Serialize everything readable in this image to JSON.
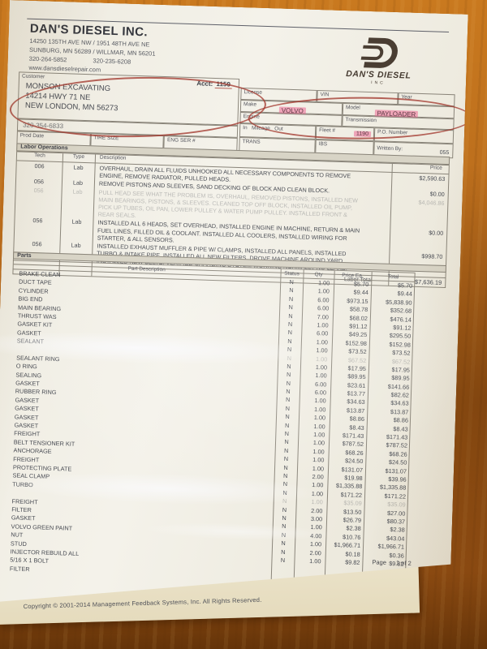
{
  "company": {
    "name": "DAN'S DIESEL INC.",
    "address1": "14250 135TH AVE NW / 1951 48TH AVE NE",
    "address2": "SUNBURG, MN 56289 / WILLMAR, MN 56201",
    "phone1": "320-264-5852",
    "phone2": "320-235-6208",
    "website": "www.dansdieselrepair.com"
  },
  "logo": {
    "name": "DAN'S DIESEL",
    "sub": "INC"
  },
  "customer": {
    "label": "Customer",
    "acct_label": "Acct:",
    "acct_value": "1159",
    "name": "MONSON EXCAVATING",
    "address1": "14214 HWY 71 NE",
    "address2": "NEW LONDON, MN 56273",
    "phone": "320-354-6833"
  },
  "vehicle": {
    "license_label": "License",
    "vin_label": "VIN",
    "year_label": "Year",
    "make_label": "Make",
    "make_value": "VOLVO",
    "model_label": "Model",
    "model_value": "PAYLOADER",
    "engine_label": "Engine",
    "transmission_label": "Transmission",
    "in_label": "In",
    "mileage_label": "Mileage",
    "out_label": "Out",
    "fleet_label": "Fleet #",
    "fleet_value": "1190",
    "po_label": "P.O. Number",
    "prod_date_label": "Prod Date",
    "tire_size_label": "TIRE SIZE",
    "eng_ser_label": "ENG SER #",
    "trans_label": "TRANS",
    "ibs_label": "IBS",
    "written_by_label": "Written By:",
    "written_by_value": "055"
  },
  "labor": {
    "section_label": "Labor Operations",
    "headers": {
      "tech": "Tech",
      "type": "Type",
      "desc": "Description",
      "price": "Price"
    },
    "rows": [
      {
        "tech": "006",
        "type": "Lab",
        "desc": "OVERHAUL, DRAIN ALL FLUIDS UNHOOKED ALL NECESSARY COMPONENTS TO REMOVE ENGINE, REMOVE RADIATOR, PULLED HEADS.",
        "price": "$2,590.63"
      },
      {
        "tech": "056",
        "type": "Lab",
        "desc": "REMOVE PISTONS AND SLEEVES, SAND DECKING OF BLOCK AND CLEAN BLOCK.",
        "price": "$0.00"
      },
      {
        "tech": "056",
        "type": "Lab",
        "desc": "PULL HEAD SEE WHAT THE PROBLEM IS, OVERHAUL, REMOVED PISTONS, INSTALLED NEW MAIN BEARINGS, PISTONS, & SLEEVES. CLEANED TOP OFF BLOCK, INSTALLED OIL PUMP, PICK UP TUBES, OIL PAN, LOWER PULLEY & WATER PUMP PULLEY. INSTALLED FRONT & REAR SEALS.",
        "price": "$4,046.86",
        "faint": true
      },
      {
        "tech": "056",
        "type": "Lab",
        "desc": "INSTALLED ALL 6 HEADS, SET OVERHEAD, INSTALLED ENGINE IN MACHINE, RETURN & MAIN FUEL LINES, FILLED OIL & COOLANT. INSTALLED ALL COOLERS, INSTALLED WIRING FOR STARTER, & ALL SENSORS.",
        "price": "$0.00"
      },
      {
        "tech": "056",
        "type": "Lab",
        "desc": "INSTALLED EXHAUST MUFFLER & PIPE W/ CLAMPS, INSTALLED ALL PANELS, INSTALLED TURBO & INTAKE PIPE, INSTALLED ALL NEW FILTERS, DROVE MACHINE AROUND YARD, INSTALLED NEW BELTS, VERIFIED CHARGING SYSTEM WORKING NORMALLY NO LEAKS.",
        "price": "$998.70"
      }
    ],
    "total_label": "Labor Total",
    "total": "$7,636.19"
  },
  "parts": {
    "section_label": "Parts",
    "headers": {
      "desc": "Part Description",
      "status": "Status",
      "qty": "Qty",
      "price": "Price Ea.",
      "total": "Total"
    },
    "rows": [
      {
        "desc": "BRAKE CLEAN",
        "status": "N",
        "qty": "1.00",
        "price": "$5.70",
        "total": "$5.70"
      },
      {
        "desc": "DUCT TAPE",
        "status": "N",
        "qty": "1.00",
        "price": "$9.44",
        "total": "$9.44"
      },
      {
        "desc": "CYLINDER",
        "status": "N",
        "qty": "6.00",
        "price": "$973.15",
        "total": "$5,838.90"
      },
      {
        "desc": "BIG END",
        "status": "N",
        "qty": "6.00",
        "price": "$58.78",
        "total": "$352.68"
      },
      {
        "desc": "MAIN BEARING",
        "status": "N",
        "qty": "7.00",
        "price": "$68.02",
        "total": "$476.14"
      },
      {
        "desc": "THRUST WAS",
        "status": "N",
        "qty": "1.00",
        "price": "$91.12",
        "total": "$91.12"
      },
      {
        "desc": "GASKET KIT",
        "status": "N",
        "qty": "6.00",
        "price": "$49.25",
        "total": "$295.50"
      },
      {
        "desc": "GASKET",
        "status": "N",
        "qty": "1.00",
        "price": "$152.98",
        "total": "$152.98"
      },
      {
        "desc": "SEALANT",
        "status": "N",
        "qty": "1.00",
        "price": "$73.52",
        "total": "$73.52"
      },
      {
        "desc": "",
        "status": "N",
        "qty": "1.00",
        "price": "$67.52",
        "total": "$67.52",
        "faint": true
      },
      {
        "desc": "SEALANT RING",
        "status": "N",
        "qty": "1.00",
        "price": "$17.95",
        "total": "$17.95"
      },
      {
        "desc": "O RING",
        "status": "N",
        "qty": "1.00",
        "price": "$89.95",
        "total": "$89.95"
      },
      {
        "desc": "SEALING",
        "status": "N",
        "qty": "6.00",
        "price": "$23.61",
        "total": "$141.66"
      },
      {
        "desc": "GASKET",
        "status": "N",
        "qty": "6.00",
        "price": "$13.77",
        "total": "$82.62"
      },
      {
        "desc": "RUBBER RING",
        "status": "N",
        "qty": "1.00",
        "price": "$34.63",
        "total": "$34.63"
      },
      {
        "desc": "GASKET",
        "status": "N",
        "qty": "1.00",
        "price": "$13.87",
        "total": "$13.87"
      },
      {
        "desc": "GASKET",
        "status": "N",
        "qty": "1.00",
        "price": "$8.86",
        "total": "$8.86"
      },
      {
        "desc": "GASKET",
        "status": "N",
        "qty": "1.00",
        "price": "$8.43",
        "total": "$8.43"
      },
      {
        "desc": "GASKET",
        "status": "N",
        "qty": "1.00",
        "price": "$171.43",
        "total": "$171.43"
      },
      {
        "desc": "FREIGHT",
        "status": "N",
        "qty": "1.00",
        "price": "$787.52",
        "total": "$787.52"
      },
      {
        "desc": "BELT TENSIONER KIT",
        "status": "N",
        "qty": "1.00",
        "price": "$68.26",
        "total": "$68.26"
      },
      {
        "desc": "ANCHORAGE",
        "status": "N",
        "qty": "1.00",
        "price": "$24.50",
        "total": "$24.50"
      },
      {
        "desc": "FREIGHT",
        "status": "N",
        "qty": "1.00",
        "price": "$131.07",
        "total": "$131.07"
      },
      {
        "desc": "PROTECTING PLATE",
        "status": "N",
        "qty": "2.00",
        "price": "$19.98",
        "total": "$39.96"
      },
      {
        "desc": "SEAL CLAMP",
        "status": "N",
        "qty": "1.00",
        "price": "$1,335.88",
        "total": "$1,335.88"
      },
      {
        "desc": "TURBO",
        "status": "N",
        "qty": "1.00",
        "price": "$171.22",
        "total": "$171.22"
      },
      {
        "desc": "",
        "status": "N",
        "qty": "1.00",
        "price": "$35.09",
        "total": "$35.09",
        "faint": true
      },
      {
        "desc": "FREIGHT",
        "status": "N",
        "qty": "2.00",
        "price": "$13.50",
        "total": "$27.00"
      },
      {
        "desc": "FILTER",
        "status": "N",
        "qty": "3.00",
        "price": "$26.79",
        "total": "$80.37"
      },
      {
        "desc": "GASKET",
        "status": "N",
        "qty": "1.00",
        "price": "$2.38",
        "total": "$2.38"
      },
      {
        "desc": "VOLVO GREEN PAINT",
        "status": "N",
        "qty": "4.00",
        "price": "$10.76",
        "total": "$43.04"
      },
      {
        "desc": "NUT",
        "status": "N",
        "qty": "1.00",
        "price": "$1,966.71",
        "total": "$1,966.71"
      },
      {
        "desc": "STUD",
        "status": "N",
        "qty": "2.00",
        "price": "$0.18",
        "total": "$0.36"
      },
      {
        "desc": "INJECTOR REBUILD ALL",
        "status": "N",
        "qty": "1.00",
        "price": "$9.82",
        "total": "$9.82"
      },
      {
        "desc": "5/16 X 1 BOLT",
        "status": "",
        "qty": "",
        "price": "",
        "total": ""
      },
      {
        "desc": "FILTER",
        "status": "",
        "qty": "",
        "price": "",
        "total": ""
      }
    ]
  },
  "footer": {
    "page_label": "Page",
    "page_value": "1 of 2",
    "copyright": "Copyright © 2001-2014 Management Feedback Systems, Inc. All Rights Reserved."
  }
}
